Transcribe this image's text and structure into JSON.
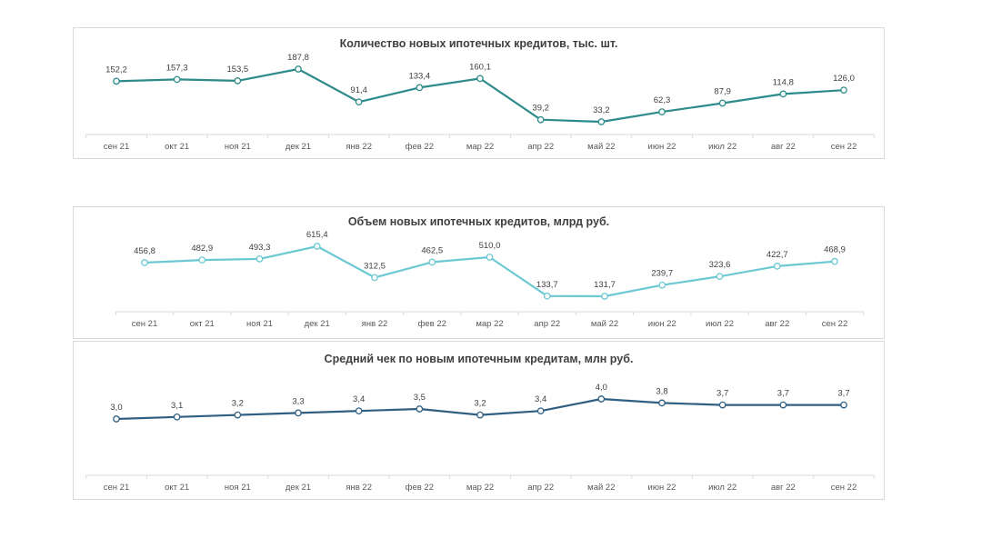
{
  "chart_data": [
    {
      "type": "line",
      "title": "Количество новых ипотечных кредитов, тыс. шт.",
      "categories": [
        "сен 21",
        "окт 21",
        "ноя 21",
        "дек 21",
        "янв 22",
        "фев 22",
        "мар 22",
        "апр 22",
        "май 22",
        "июн 22",
        "июл 22",
        "авг 22",
        "сен 22"
      ],
      "series": [
        {
          "values": [
            152.2,
            157.3,
            153.5,
            187.8,
            91.4,
            133.4,
            160.1,
            39.2,
            33.2,
            62.3,
            87.9,
            114.8,
            126.0
          ],
          "labels": [
            "152,2",
            "157,3",
            "153,5",
            "187,8",
            "91,4",
            "133,4",
            "160,1",
            "39,2",
            "33,2",
            "62,3",
            "87,9",
            "114,8",
            "126,0"
          ],
          "color": "#2e8b8b"
        }
      ],
      "grid": false,
      "legend": "none"
    },
    {
      "type": "line",
      "title": "Объем новых ипотечных кредитов, млрд руб.",
      "categories": [
        "сен 21",
        "окт 21",
        "ноя 21",
        "дек 21",
        "янв 22",
        "фев 22",
        "мар 22",
        "апр 22",
        "май 22",
        "июн 22",
        "июл 22",
        "авг 22",
        "сен 22"
      ],
      "series": [
        {
          "values": [
            456.8,
            482.9,
            493.3,
            615.4,
            312.5,
            462.5,
            510.0,
            133.7,
            131.7,
            239.7,
            323.6,
            422.7,
            468.9
          ],
          "labels": [
            "456,8",
            "482,9",
            "493,3",
            "615,4",
            "312,5",
            "462,5",
            "510,0",
            "133,7",
            "131,7",
            "239,7",
            "323,6",
            "422,7",
            "468,9"
          ],
          "color": "#6cc9d3"
        }
      ],
      "grid": false,
      "legend": "none"
    },
    {
      "type": "line",
      "title": "Средний чек по новым ипотечным кредитам, млн руб.",
      "categories": [
        "сен 21",
        "окт 21",
        "ноя 21",
        "дек 21",
        "янв 22",
        "фев 22",
        "мар 22",
        "апр 22",
        "май 22",
        "июн 22",
        "июл 22",
        "авг 22",
        "сен 22"
      ],
      "series": [
        {
          "values": [
            3.0,
            3.1,
            3.2,
            3.3,
            3.4,
            3.5,
            3.2,
            3.4,
            4.0,
            3.8,
            3.7,
            3.7,
            3.7
          ],
          "labels": [
            "3,0",
            "3,1",
            "3,2",
            "3,3",
            "3,4",
            "3,5",
            "3,2",
            "3,4",
            "4,0",
            "3,8",
            "3,7",
            "3,7",
            "3,7"
          ],
          "color": "#2f5f82"
        }
      ],
      "grid": false,
      "legend": "none"
    }
  ]
}
